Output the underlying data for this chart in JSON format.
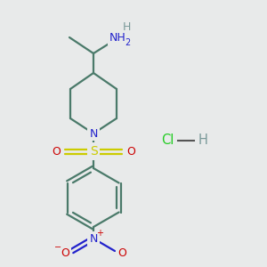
{
  "background_color": "#e8eaea",
  "bond_color": "#4a7a6a",
  "N_color": "#2222cc",
  "O_color": "#cc0000",
  "S_color": "#cccc00",
  "H_color": "#7a9a9a",
  "Cl_color": "#22cc22",
  "line_width": 1.6,
  "figsize": [
    3.0,
    3.0
  ],
  "dpi": 100,
  "xlim": [
    0,
    300
  ],
  "ylim": [
    0,
    300
  ]
}
